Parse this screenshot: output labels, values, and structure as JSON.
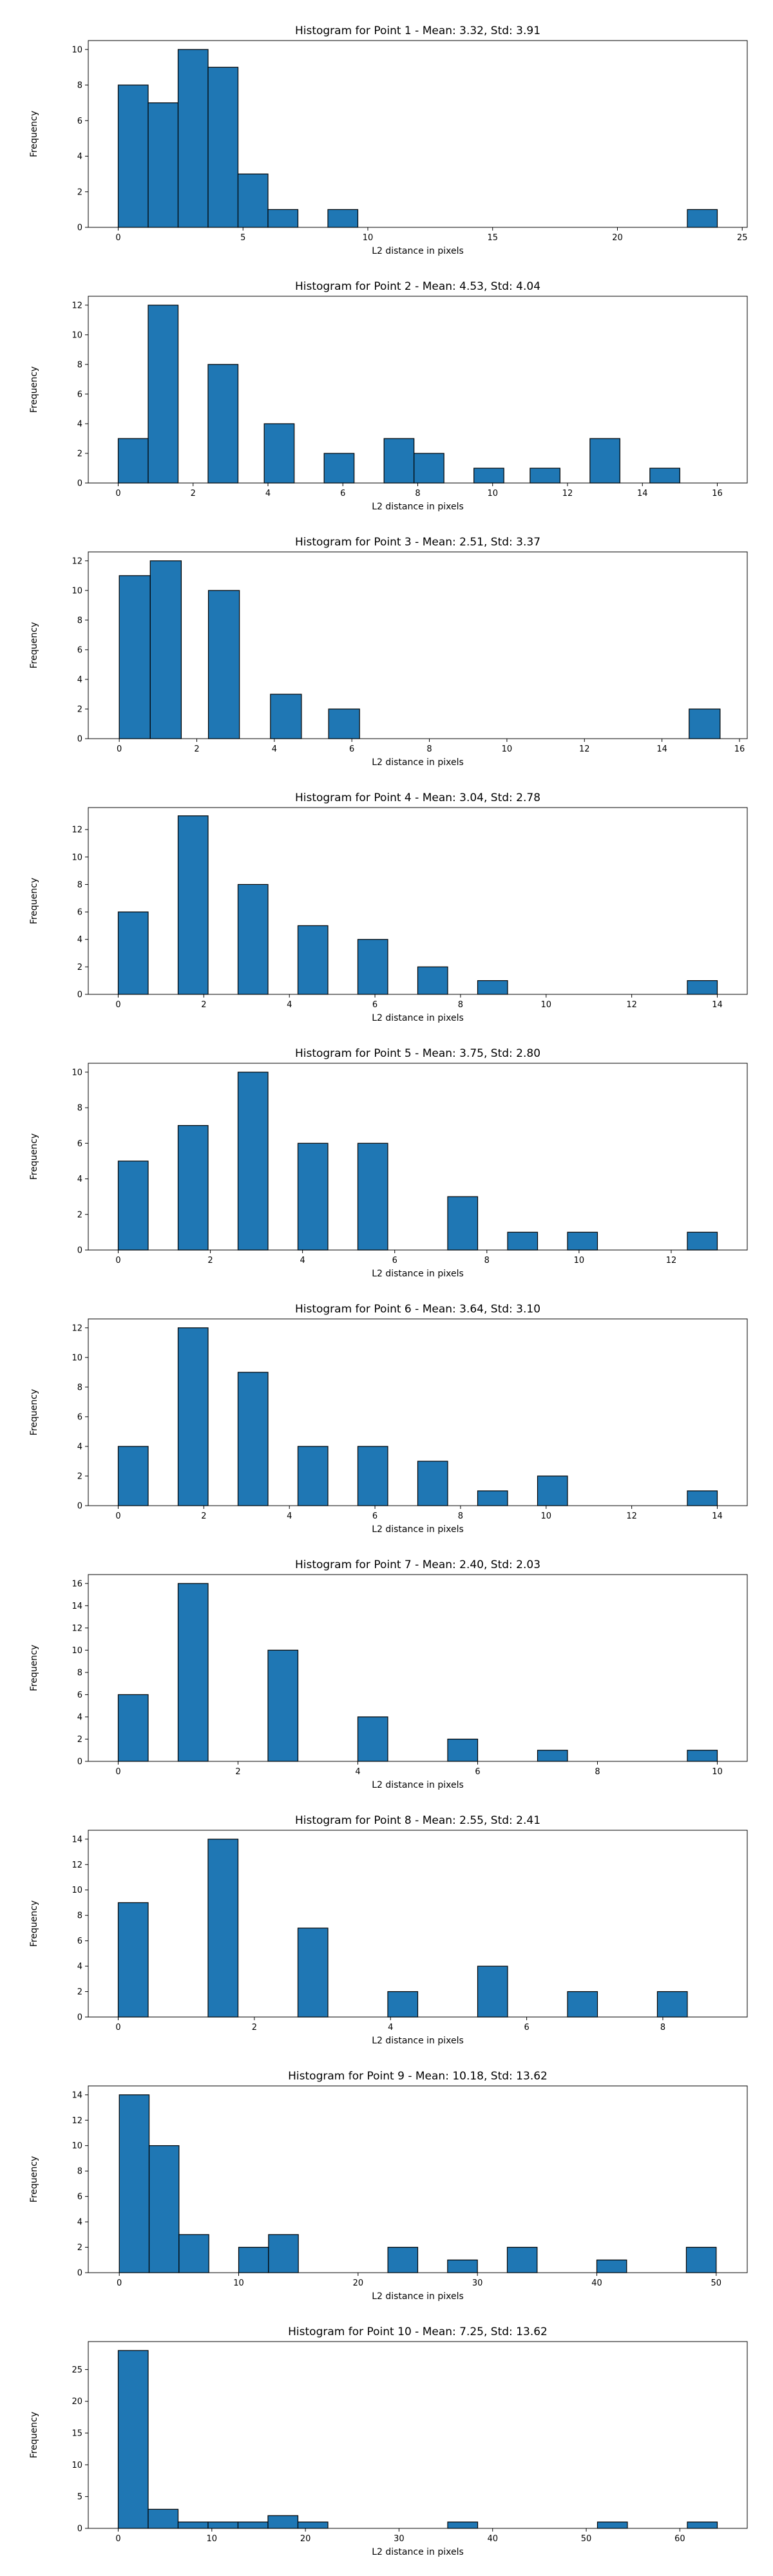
{
  "chart_data": [
    {
      "type": "bar",
      "title": "Histogram for Point 1 - Mean: 3.32, Std: 3.91",
      "xlabel": "L2 distance in pixels",
      "ylabel": "Frequency",
      "xlim": [
        -1.2,
        25.2
      ],
      "ylim": [
        0,
        10.5
      ],
      "xticks": [
        0,
        5,
        10,
        15,
        20,
        25
      ],
      "yticks": [
        0,
        2,
        4,
        6,
        8,
        10
      ],
      "grid": false,
      "bins": [
        [
          0,
          1.2,
          8
        ],
        [
          1.2,
          2.4,
          7
        ],
        [
          2.4,
          3.6,
          10
        ],
        [
          3.6,
          4.8,
          9
        ],
        [
          4.8,
          6.0,
          3
        ],
        [
          6.0,
          7.2,
          1
        ],
        [
          8.4,
          9.6,
          1
        ],
        [
          22.8,
          24.0,
          1
        ]
      ]
    },
    {
      "type": "bar",
      "title": "Histogram for Point 2 - Mean: 4.53, Std: 4.04",
      "xlabel": "L2 distance in pixels",
      "ylabel": "Frequency",
      "xlim": [
        -0.8,
        16.8
      ],
      "ylim": [
        0,
        12.6
      ],
      "xticks": [
        0,
        2,
        4,
        6,
        8,
        10,
        12,
        14,
        16
      ],
      "yticks": [
        0,
        2,
        4,
        6,
        8,
        10,
        12
      ],
      "grid": false,
      "bins": [
        [
          0,
          0.8,
          3
        ],
        [
          0.8,
          1.6,
          12
        ],
        [
          2.4,
          3.2,
          8
        ],
        [
          3.9,
          4.7,
          4
        ],
        [
          5.5,
          6.3,
          2
        ],
        [
          7.1,
          7.9,
          3
        ],
        [
          7.9,
          8.7,
          2
        ],
        [
          9.5,
          10.3,
          1
        ],
        [
          11.0,
          11.8,
          1
        ],
        [
          12.6,
          13.4,
          3
        ],
        [
          14.2,
          15.0,
          1
        ]
      ]
    },
    {
      "type": "bar",
      "title": "Histogram for Point 3 - Mean: 2.51, Std: 3.37",
      "xlabel": "L2 distance in pixels",
      "ylabel": "Frequency",
      "xlim": [
        -0.8,
        16.2
      ],
      "ylim": [
        0,
        12.6
      ],
      "xticks": [
        0,
        2,
        4,
        6,
        8,
        10,
        12,
        14,
        16
      ],
      "yticks": [
        0,
        2,
        4,
        6,
        8,
        10,
        12
      ],
      "grid": false,
      "bins": [
        [
          0,
          0.8,
          11
        ],
        [
          0.8,
          1.6,
          12
        ],
        [
          2.3,
          3.1,
          10
        ],
        [
          3.9,
          4.7,
          3
        ],
        [
          5.4,
          6.2,
          2
        ],
        [
          14.7,
          15.5,
          2
        ]
      ]
    },
    {
      "type": "bar",
      "title": "Histogram for Point 4 - Mean: 3.04, Std: 2.78",
      "xlabel": "L2 distance in pixels",
      "ylabel": "Frequency",
      "xlim": [
        -0.7,
        14.7
      ],
      "ylim": [
        0,
        13.6
      ],
      "xticks": [
        0,
        2,
        4,
        6,
        8,
        10,
        12,
        14
      ],
      "yticks": [
        0,
        2,
        4,
        6,
        8,
        10,
        12
      ],
      "grid": false,
      "bins": [
        [
          0,
          0.7,
          6
        ],
        [
          1.4,
          2.1,
          13
        ],
        [
          2.8,
          3.5,
          8
        ],
        [
          4.2,
          4.9,
          5
        ],
        [
          5.6,
          6.3,
          4
        ],
        [
          7.0,
          7.7,
          2
        ],
        [
          8.4,
          9.1,
          1
        ],
        [
          13.3,
          14.0,
          1
        ]
      ]
    },
    {
      "type": "bar",
      "title": "Histogram for Point 5 - Mean: 3.75, Std: 2.80",
      "xlabel": "L2 distance in pixels",
      "ylabel": "Frequency",
      "xlim": [
        -0.65,
        13.65
      ],
      "ylim": [
        0,
        10.5
      ],
      "xticks": [
        0,
        2,
        4,
        6,
        8,
        10,
        12
      ],
      "yticks": [
        0,
        2,
        4,
        6,
        8,
        10
      ],
      "grid": false,
      "bins": [
        [
          0,
          0.65,
          5
        ],
        [
          1.3,
          1.95,
          7
        ],
        [
          2.6,
          3.25,
          10
        ],
        [
          3.9,
          4.55,
          6
        ],
        [
          5.2,
          5.85,
          6
        ],
        [
          7.15,
          7.8,
          3
        ],
        [
          8.45,
          9.1,
          1
        ],
        [
          9.75,
          10.4,
          1
        ],
        [
          12.35,
          13.0,
          1
        ]
      ]
    },
    {
      "type": "bar",
      "title": "Histogram for Point 6 - Mean: 3.64, Std: 3.10",
      "xlabel": "L2 distance in pixels",
      "ylabel": "Frequency",
      "xlim": [
        -0.7,
        14.7
      ],
      "ylim": [
        0,
        12.6
      ],
      "xticks": [
        0,
        2,
        4,
        6,
        8,
        10,
        12,
        14
      ],
      "yticks": [
        0,
        2,
        4,
        6,
        8,
        10,
        12
      ],
      "grid": false,
      "bins": [
        [
          0,
          0.7,
          4
        ],
        [
          1.4,
          2.1,
          12
        ],
        [
          2.8,
          3.5,
          9
        ],
        [
          4.2,
          4.9,
          4
        ],
        [
          5.6,
          6.3,
          4
        ],
        [
          7.0,
          7.7,
          3
        ],
        [
          8.4,
          9.1,
          1
        ],
        [
          9.8,
          10.5,
          2
        ],
        [
          13.3,
          14.0,
          1
        ]
      ]
    },
    {
      "type": "bar",
      "title": "Histogram for Point 7 - Mean: 2.40, Std: 2.03",
      "xlabel": "L2 distance in pixels",
      "ylabel": "Frequency",
      "xlim": [
        -0.5,
        10.5
      ],
      "ylim": [
        0,
        16.8
      ],
      "xticks": [
        0,
        2,
        4,
        6,
        8,
        10
      ],
      "yticks": [
        0,
        2,
        4,
        6,
        8,
        10,
        12,
        14,
        16
      ],
      "grid": false,
      "bins": [
        [
          0,
          0.5,
          6
        ],
        [
          1.0,
          1.5,
          16
        ],
        [
          2.5,
          3.0,
          10
        ],
        [
          4.0,
          4.5,
          4
        ],
        [
          5.5,
          6.0,
          2
        ],
        [
          7.0,
          7.5,
          1
        ],
        [
          9.5,
          10.0,
          1
        ]
      ]
    },
    {
      "type": "bar",
      "title": "Histogram for Point 8 - Mean: 2.55, Std: 2.41",
      "xlabel": "L2 distance in pixels",
      "ylabel": "Frequency",
      "xlim": [
        -0.44,
        9.24
      ],
      "ylim": [
        0,
        14.7
      ],
      "xticks": [
        0,
        2,
        4,
        6,
        8
      ],
      "yticks": [
        0,
        2,
        4,
        6,
        8,
        10,
        12,
        14
      ],
      "grid": false,
      "bins": [
        [
          0,
          0.44,
          9
        ],
        [
          1.32,
          1.76,
          14
        ],
        [
          2.64,
          3.08,
          7
        ],
        [
          3.96,
          4.4,
          2
        ],
        [
          5.28,
          5.72,
          4
        ],
        [
          6.6,
          7.04,
          2
        ],
        [
          7.92,
          8.36,
          2
        ]
      ]
    },
    {
      "type": "bar",
      "title": "Histogram for Point 9 - Mean: 10.18, Std: 13.62",
      "xlabel": "L2 distance in pixels",
      "ylabel": "Frequency",
      "xlim": [
        -2.6,
        52.6
      ],
      "ylim": [
        0,
        14.7
      ],
      "xticks": [
        0,
        10,
        20,
        30,
        40,
        50
      ],
      "yticks": [
        0,
        2,
        4,
        6,
        8,
        10,
        12,
        14
      ],
      "grid": false,
      "bins": [
        [
          0,
          2.5,
          14
        ],
        [
          2.5,
          5.0,
          10
        ],
        [
          5.0,
          7.5,
          3
        ],
        [
          10.0,
          12.5,
          2
        ],
        [
          12.5,
          15.0,
          3
        ],
        [
          22.5,
          25.0,
          2
        ],
        [
          27.5,
          30.0,
          1
        ],
        [
          32.5,
          35.0,
          2
        ],
        [
          40.0,
          42.5,
          1
        ],
        [
          47.5,
          50.0,
          2
        ]
      ]
    },
    {
      "type": "bar",
      "title": "Histogram for Point 10 - Mean: 7.25, Std: 13.62",
      "xlabel": "L2 distance in pixels",
      "ylabel": "Frequency",
      "xlim": [
        -3.2,
        67.2
      ],
      "ylim": [
        0,
        29.4
      ],
      "xticks": [
        0,
        10,
        20,
        30,
        40,
        50,
        60
      ],
      "yticks": [
        0,
        5,
        10,
        15,
        20,
        25
      ],
      "grid": false,
      "bins": [
        [
          0,
          3.2,
          28
        ],
        [
          3.2,
          6.4,
          3
        ],
        [
          6.4,
          9.6,
          1
        ],
        [
          9.6,
          12.8,
          1
        ],
        [
          12.8,
          16.0,
          1
        ],
        [
          16.0,
          19.2,
          2
        ],
        [
          19.2,
          22.4,
          1
        ],
        [
          35.2,
          38.4,
          1
        ],
        [
          51.2,
          54.4,
          1
        ],
        [
          60.8,
          64.0,
          1
        ]
      ]
    }
  ]
}
